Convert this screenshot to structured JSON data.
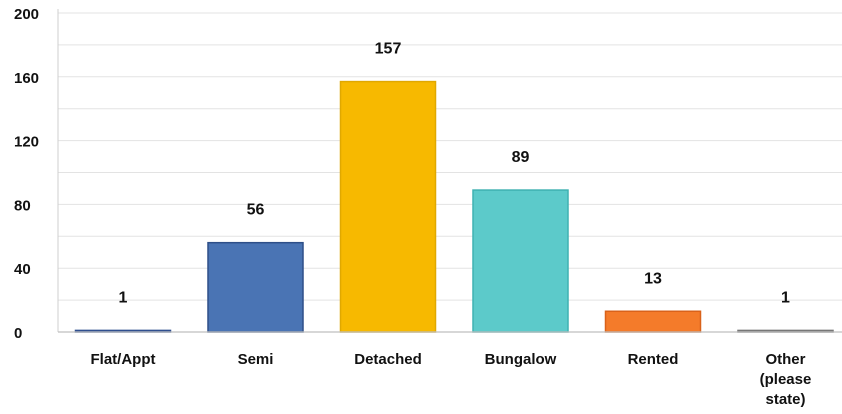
{
  "chart_data": {
    "type": "bar",
    "title": "",
    "xlabel": "",
    "ylabel": "",
    "ylim": [
      0,
      200
    ],
    "yticks": [
      0,
      40,
      80,
      120,
      160,
      200
    ],
    "grid": true,
    "legend": "none",
    "categories": [
      "Flat/Appt",
      "Semi",
      "Detached",
      "Bungalow",
      "Rented",
      "Other (please state)"
    ],
    "category_label_lines": [
      [
        "Flat/Appt"
      ],
      [
        "Semi"
      ],
      [
        "Detached"
      ],
      [
        "Bungalow"
      ],
      [
        "Rented"
      ],
      [
        "Other",
        "(please",
        "state)"
      ]
    ],
    "values": [
      1,
      56,
      157,
      89,
      13,
      1
    ],
    "data_labels": [
      "1",
      "56",
      "157",
      "89",
      "13",
      "1"
    ],
    "colors": [
      "#4472c4",
      "#4a74b4",
      "#f7b900",
      "#5ccaca",
      "#f47b2a",
      "#999999"
    ],
    "edge_colors": [
      "#2f4f8f",
      "#2e4f88",
      "#e0a800",
      "#3fb2b2",
      "#d9621a",
      "#777777"
    ]
  }
}
